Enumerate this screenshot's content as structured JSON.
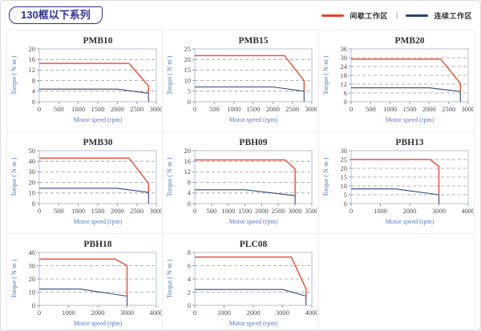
{
  "header": {
    "title": "130框以下系列",
    "legend": [
      {
        "label": "间歇工作区",
        "color": "#e8432c"
      },
      {
        "label": "连续工作区",
        "color": "#24427e"
      }
    ],
    "legend_separator": "|"
  },
  "chart_data": [
    {
      "type": "line",
      "title": "PMB10",
      "xlabel": "Motor speed (rpm)",
      "ylabel": "Torque ( N·m )",
      "xlim": [
        0,
        3000
      ],
      "ylim": [
        0,
        20
      ],
      "xticks": [
        0,
        500,
        1000,
        1500,
        2000,
        2500,
        3000
      ],
      "yticks": [
        0,
        4,
        8,
        12,
        16,
        20
      ],
      "grid": "horizontal-dashed",
      "series": [
        {
          "name": "间歇工作区",
          "color": "#ea5540",
          "points": [
            [
              0,
              14.5
            ],
            [
              2300,
              14.5
            ],
            [
              2800,
              6
            ],
            [
              2800,
              3.2
            ]
          ]
        },
        {
          "name": "连续工作区",
          "color": "#2d4a80",
          "points": [
            [
              0,
              4.8
            ],
            [
              2000,
              4.8
            ],
            [
              2800,
              3.2
            ],
            [
              2800,
              0
            ]
          ]
        }
      ]
    },
    {
      "type": "line",
      "title": "PMB15",
      "xlabel": "Motor speed (rpm)",
      "ylabel": "Torque ( N·m )",
      "xlim": [
        0,
        3000
      ],
      "ylim": [
        0,
        25
      ],
      "xticks": [
        0,
        500,
        1000,
        1500,
        2000,
        2500,
        3000
      ],
      "yticks": [
        0,
        5,
        10,
        15,
        20,
        25
      ],
      "grid": "horizontal-dashed",
      "series": [
        {
          "name": "间歇工作区",
          "color": "#ea5540",
          "points": [
            [
              0,
              21.8
            ],
            [
              2300,
              21.8
            ],
            [
              2800,
              10
            ],
            [
              2800,
              5
            ]
          ]
        },
        {
          "name": "连续工作区",
          "color": "#2d4a80",
          "points": [
            [
              0,
              7
            ],
            [
              2000,
              7
            ],
            [
              2800,
              5
            ],
            [
              2800,
              0
            ]
          ]
        }
      ]
    },
    {
      "type": "line",
      "title": "PMB20",
      "xlabel": "Motor speed (rpm)",
      "ylabel": "Torque ( N·m )",
      "xlim": [
        0,
        3000
      ],
      "ylim": [
        0,
        36
      ],
      "xticks": [
        0,
        500,
        1000,
        1500,
        2000,
        2500,
        3000
      ],
      "yticks": [
        0,
        6,
        12,
        18,
        24,
        30,
        36
      ],
      "grid": "horizontal-dashed",
      "series": [
        {
          "name": "间歇工作区",
          "color": "#ea5540",
          "points": [
            [
              0,
              29
            ],
            [
              2300,
              29
            ],
            [
              2800,
              12.5
            ],
            [
              2800,
              7
            ]
          ]
        },
        {
          "name": "连续工作区",
          "color": "#2d4a80",
          "points": [
            [
              0,
              9.5
            ],
            [
              2000,
              9.5
            ],
            [
              2800,
              7
            ],
            [
              2800,
              0
            ]
          ]
        }
      ]
    },
    {
      "type": "line",
      "title": "PMB30",
      "xlabel": "Motor speed (rpm)",
      "ylabel": "Torque ( N·m )",
      "xlim": [
        0,
        3000
      ],
      "ylim": [
        0,
        50
      ],
      "xticks": [
        0,
        500,
        1000,
        1500,
        2000,
        2500,
        3000
      ],
      "yticks": [
        0,
        10,
        20,
        30,
        40,
        50
      ],
      "grid": "horizontal-dashed",
      "series": [
        {
          "name": "间歇工作区",
          "color": "#ea5540",
          "points": [
            [
              0,
              43
            ],
            [
              2300,
              43
            ],
            [
              2800,
              19
            ],
            [
              2800,
              10.5
            ]
          ]
        },
        {
          "name": "连续工作区",
          "color": "#2d4a80",
          "points": [
            [
              0,
              14.5
            ],
            [
              2000,
              14.5
            ],
            [
              2800,
              10.5
            ],
            [
              2800,
              0
            ]
          ]
        }
      ]
    },
    {
      "type": "line",
      "title": "PBH09",
      "xlabel": "Motor speed (rpm)",
      "ylabel": "Torque ( N·m )",
      "xlim": [
        0,
        3500
      ],
      "ylim": [
        0,
        20
      ],
      "xticks": [
        0,
        500,
        1000,
        1500,
        2000,
        2500,
        3000,
        3500
      ],
      "yticks": [
        0,
        4,
        8,
        12,
        16,
        20
      ],
      "grid": "horizontal-dashed",
      "series": [
        {
          "name": "间歇工作区",
          "color": "#ea5540",
          "points": [
            [
              0,
              16.5
            ],
            [
              2700,
              16.5
            ],
            [
              3000,
              13
            ],
            [
              3000,
              3
            ]
          ]
        },
        {
          "name": "连续工作区",
          "color": "#2d4a80",
          "points": [
            [
              0,
              5.2
            ],
            [
              1500,
              5.2
            ],
            [
              3000,
              3
            ],
            [
              3000,
              0
            ]
          ]
        }
      ]
    },
    {
      "type": "line",
      "title": "PBH13",
      "xlabel": "Motor speed (rpm)",
      "ylabel": "Torque ( N·m )",
      "xlim": [
        0,
        4000
      ],
      "ylim": [
        0,
        30
      ],
      "xticks": [
        0,
        1000,
        2000,
        3000,
        4000
      ],
      "yticks": [
        0,
        5,
        10,
        15,
        20,
        25,
        30
      ],
      "grid": "horizontal-dashed",
      "series": [
        {
          "name": "间歇工作区",
          "color": "#ea5540",
          "points": [
            [
              0,
              25
            ],
            [
              2700,
              25
            ],
            [
              3000,
              21
            ],
            [
              3000,
              5
            ]
          ]
        },
        {
          "name": "连续工作区",
          "color": "#2d4a80",
          "points": [
            [
              0,
              8.3
            ],
            [
              1500,
              8.3
            ],
            [
              3000,
              5
            ],
            [
              3000,
              0
            ]
          ]
        }
      ]
    },
    {
      "type": "line",
      "title": "PBH18",
      "xlabel": "Motor speed (rpm)",
      "ylabel": "Torque ( N·m )",
      "xlim": [
        0,
        4000
      ],
      "ylim": [
        0,
        40
      ],
      "xticks": [
        0,
        1000,
        2000,
        3000,
        4000
      ],
      "yticks": [
        0,
        10,
        20,
        30,
        40
      ],
      "grid": "horizontal-dashed",
      "series": [
        {
          "name": "间歇工作区",
          "color": "#ea5540",
          "points": [
            [
              0,
              35
            ],
            [
              2600,
              35
            ],
            [
              3000,
              30
            ],
            [
              3000,
              7
            ]
          ]
        },
        {
          "name": "连续工作区",
          "color": "#2d4a80",
          "points": [
            [
              0,
              12.3
            ],
            [
              1400,
              12.3
            ],
            [
              3000,
              7
            ],
            [
              3000,
              0
            ]
          ]
        }
      ]
    },
    {
      "type": "line",
      "title": "PLC08",
      "xlabel": "Motor speed (rpm)",
      "ylabel": "Torque ( N·m )",
      "xlim": [
        0,
        4000
      ],
      "ylim": [
        0,
        8
      ],
      "xticks": [
        0,
        1000,
        2000,
        3000,
        4000
      ],
      "yticks": [
        0,
        2,
        4,
        6,
        8
      ],
      "grid": "horizontal-dashed",
      "series": [
        {
          "name": "间歇工作区",
          "color": "#ea5540",
          "points": [
            [
              0,
              7.3
            ],
            [
              3300,
              7.3
            ],
            [
              3800,
              2.5
            ],
            [
              3800,
              1.4
            ]
          ]
        },
        {
          "name": "连续工作区",
          "color": "#2d4a80",
          "points": [
            [
              0,
              2.4
            ],
            [
              3000,
              2.4
            ],
            [
              3800,
              1.4
            ],
            [
              3800,
              0
            ]
          ]
        }
      ]
    }
  ]
}
